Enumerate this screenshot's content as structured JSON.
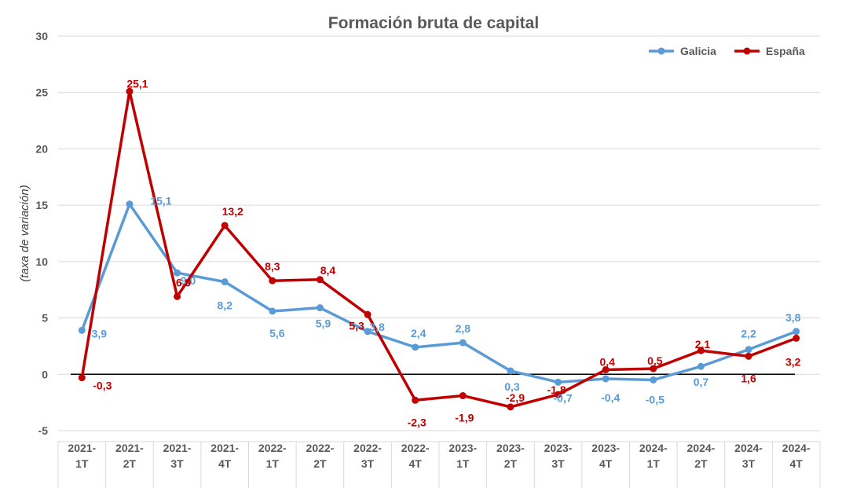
{
  "chart_data": {
    "type": "line",
    "title": "Formación bruta de capital",
    "ylabel": "(taxa de variación)",
    "xlabel": "",
    "ylim": [
      -5,
      30
    ],
    "yticks": [
      -5,
      0,
      5,
      10,
      15,
      20,
      25,
      30
    ],
    "grid": true,
    "legend_position": "top-right",
    "categories": [
      [
        "2021-",
        "1T"
      ],
      [
        "2021-",
        "2T"
      ],
      [
        "2021-",
        "3T"
      ],
      [
        "2021-",
        "4T"
      ],
      [
        "2022-",
        "1T"
      ],
      [
        "2022-",
        "2T"
      ],
      [
        "2022-",
        "3T"
      ],
      [
        "2022-",
        "4T"
      ],
      [
        "2023-",
        "1T"
      ],
      [
        "2023-",
        "2T"
      ],
      [
        "2023-",
        "3T"
      ],
      [
        "2023-",
        "4T"
      ],
      [
        "2024-",
        "1T"
      ],
      [
        "2024-",
        "2T"
      ],
      [
        "2024-",
        "3T"
      ],
      [
        "2024-",
        "4T"
      ]
    ],
    "series": [
      {
        "name": "Galicia",
        "color": "#5B9BD5",
        "values": [
          3.9,
          15.1,
          9.0,
          8.2,
          5.6,
          5.9,
          3.8,
          2.4,
          2.8,
          0.3,
          -0.7,
          -0.4,
          -0.5,
          0.7,
          2.2,
          3.8
        ],
        "labels": [
          "3,9",
          "15,1",
          "9,0",
          "8,2",
          "5,6",
          "5,9",
          "3,8",
          "2,4",
          "2,8",
          "0,3",
          "-0,7",
          "-0,4",
          "-0,5",
          "0,7",
          "2,2",
          "3,8"
        ]
      },
      {
        "name": "España",
        "color": "#C00000",
        "values": [
          -0.3,
          25.1,
          6.9,
          13.2,
          8.3,
          8.4,
          5.3,
          -2.3,
          -1.9,
          -2.9,
          -1.8,
          0.4,
          0.5,
          2.1,
          1.6,
          3.2
        ],
        "labels": [
          "-0,3",
          "25,1",
          "6,9",
          "13,2",
          "8,3",
          "8,4",
          "5,3",
          "-2,3",
          "-1,9",
          "-2,9",
          "-1,8",
          "0,4",
          "0,5",
          "2,1",
          "1,6",
          "3,2"
        ]
      }
    ],
    "colors": {
      "gridline": "#d9d9d9",
      "zeroline": "#000000",
      "text": "#595959"
    }
  }
}
